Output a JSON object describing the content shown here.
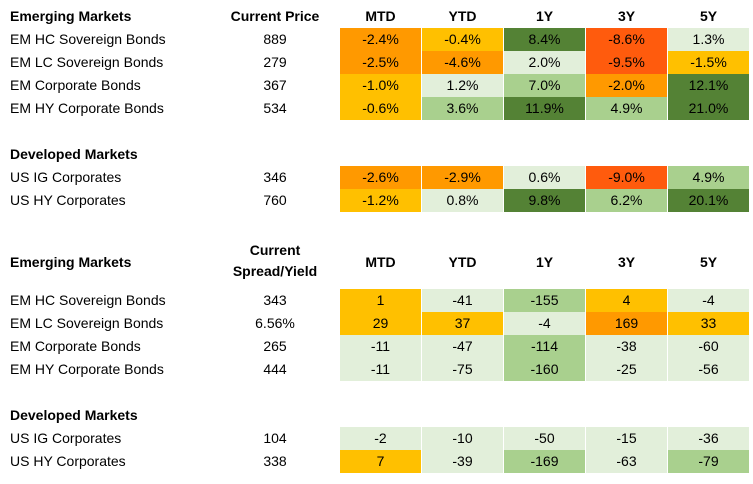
{
  "colors": {
    "dark_green": "#548235",
    "mid_green": "#a9d08e",
    "light_green": "#e2efda",
    "amber": "#ffc000",
    "orange": "#ff9900",
    "red_orange": "#ff5b0d"
  },
  "headers": {
    "price": "Current Price",
    "spread_line1": "Current",
    "spread_line2": "Spread/Yield",
    "periods": [
      "MTD",
      "YTD",
      "1Y",
      "3Y",
      "5Y"
    ]
  },
  "sections": [
    {
      "title": "Emerging Markets",
      "rows": [
        {
          "name": "EM HC Sovereign Bonds",
          "value": "889",
          "cells": [
            [
              "-2.4%",
              "orange"
            ],
            [
              "-0.4%",
              "amber"
            ],
            [
              "8.4%",
              "dark_green"
            ],
            [
              "-8.6%",
              "red_orange"
            ],
            [
              "1.3%",
              "light_green"
            ]
          ]
        },
        {
          "name": "EM LC Sovereign Bonds",
          "value": "279",
          "cells": [
            [
              "-2.5%",
              "orange"
            ],
            [
              "-4.6%",
              "orange"
            ],
            [
              "2.0%",
              "light_green"
            ],
            [
              "-9.5%",
              "red_orange"
            ],
            [
              "-1.5%",
              "amber"
            ]
          ]
        },
        {
          "name": "EM Corporate Bonds",
          "value": "367",
          "cells": [
            [
              "-1.0%",
              "amber"
            ],
            [
              "1.2%",
              "light_green"
            ],
            [
              "7.0%",
              "mid_green"
            ],
            [
              "-2.0%",
              "orange"
            ],
            [
              "12.1%",
              "dark_green"
            ]
          ]
        },
        {
          "name": "EM HY Corporate Bonds",
          "value": "534",
          "cells": [
            [
              "-0.6%",
              "amber"
            ],
            [
              "3.6%",
              "mid_green"
            ],
            [
              "11.9%",
              "dark_green"
            ],
            [
              "4.9%",
              "mid_green"
            ],
            [
              "21.0%",
              "dark_green"
            ]
          ]
        }
      ]
    },
    {
      "title": "Developed Markets",
      "rows": [
        {
          "name": "US IG Corporates",
          "value": "346",
          "cells": [
            [
              "-2.6%",
              "orange"
            ],
            [
              "-2.9%",
              "orange"
            ],
            [
              "0.6%",
              "light_green"
            ],
            [
              "-9.0%",
              "red_orange"
            ],
            [
              "4.9%",
              "mid_green"
            ]
          ]
        },
        {
          "name": "US HY Corporates",
          "value": "760",
          "cells": [
            [
              "-1.2%",
              "amber"
            ],
            [
              "0.8%",
              "light_green"
            ],
            [
              "9.8%",
              "dark_green"
            ],
            [
              "6.2%",
              "mid_green"
            ],
            [
              "20.1%",
              "dark_green"
            ]
          ]
        }
      ]
    },
    {
      "title": "Emerging Markets",
      "rows": [
        {
          "name": "EM HC Sovereign Bonds",
          "value": "343",
          "cells": [
            [
              "1",
              "amber"
            ],
            [
              "-41",
              "light_green"
            ],
            [
              "-155",
              "mid_green"
            ],
            [
              "4",
              "amber"
            ],
            [
              "-4",
              "light_green"
            ]
          ]
        },
        {
          "name": "EM LC Sovereign Bonds",
          "value": "6.56%",
          "cells": [
            [
              "29",
              "amber"
            ],
            [
              "37",
              "amber"
            ],
            [
              "-4",
              "light_green"
            ],
            [
              "169",
              "orange"
            ],
            [
              "33",
              "amber"
            ]
          ]
        },
        {
          "name": "EM Corporate Bonds",
          "value": "265",
          "cells": [
            [
              "-11",
              "light_green"
            ],
            [
              "-47",
              "light_green"
            ],
            [
              "-114",
              "mid_green"
            ],
            [
              "-38",
              "light_green"
            ],
            [
              "-60",
              "light_green"
            ]
          ]
        },
        {
          "name": "EM HY Corporate Bonds",
          "value": "444",
          "cells": [
            [
              "-11",
              "light_green"
            ],
            [
              "-75",
              "light_green"
            ],
            [
              "-160",
              "mid_green"
            ],
            [
              "-25",
              "light_green"
            ],
            [
              "-56",
              "light_green"
            ]
          ]
        }
      ]
    },
    {
      "title": "Developed Markets",
      "rows": [
        {
          "name": "US IG Corporates",
          "value": "104",
          "cells": [
            [
              "-2",
              "light_green"
            ],
            [
              "-10",
              "light_green"
            ],
            [
              "-50",
              "light_green"
            ],
            [
              "-15",
              "light_green"
            ],
            [
              "-36",
              "light_green"
            ]
          ]
        },
        {
          "name": "US HY Corporates",
          "value": "338",
          "cells": [
            [
              "7",
              "amber"
            ],
            [
              "-39",
              "light_green"
            ],
            [
              "-169",
              "mid_green"
            ],
            [
              "-63",
              "light_green"
            ],
            [
              "-79",
              "mid_green"
            ]
          ]
        }
      ]
    }
  ]
}
